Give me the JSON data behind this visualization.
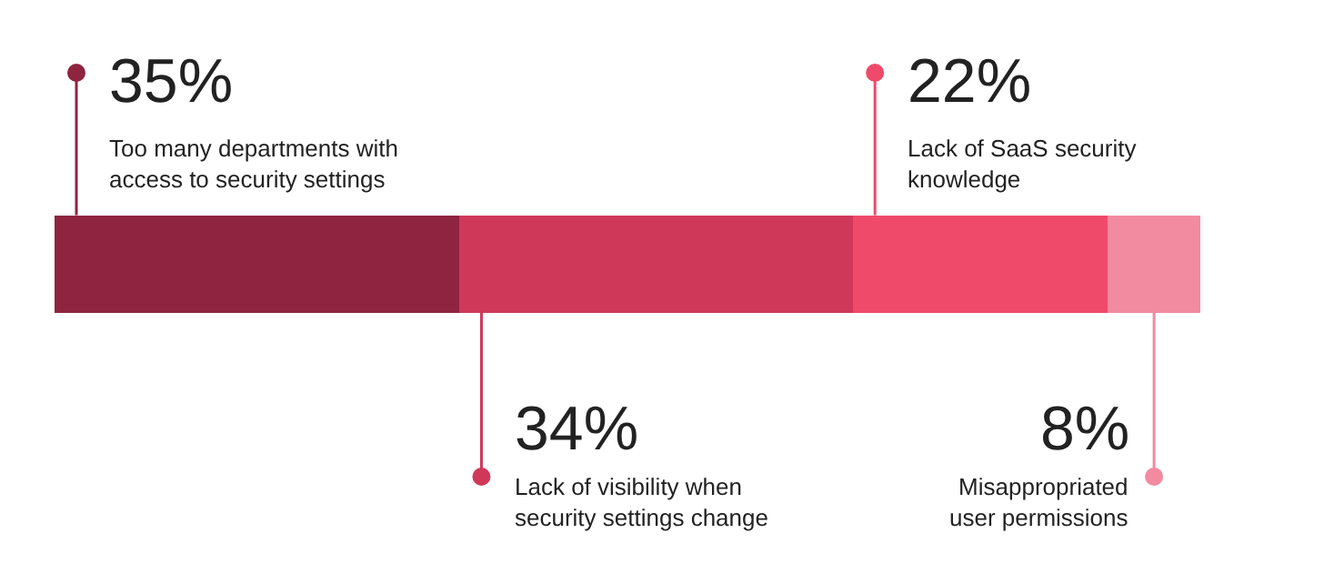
{
  "chart_data": {
    "type": "bar",
    "orientation": "horizontal",
    "stacked": true,
    "categories": [
      null
    ],
    "series": [
      {
        "name": "Too many departments with\naccess to security settings",
        "color": "#8e2440",
        "values": [
          35
        ],
        "value_labels": [
          "35%"
        ]
      },
      {
        "name": "Lack of visibility when\nsecurity settings change",
        "color": "#d0385a",
        "values": [
          34
        ],
        "value_labels": [
          "34%"
        ]
      },
      {
        "name": "Lack of SaaS security\nknowledge",
        "color": "#ef4a6a",
        "values": [
          22
        ],
        "value_labels": [
          "22%"
        ]
      },
      {
        "name": "Misappropriated\nuser permissions",
        "color": "#f28aa0",
        "values": [
          8
        ],
        "value_labels": [
          "8%"
        ]
      }
    ]
  }
}
